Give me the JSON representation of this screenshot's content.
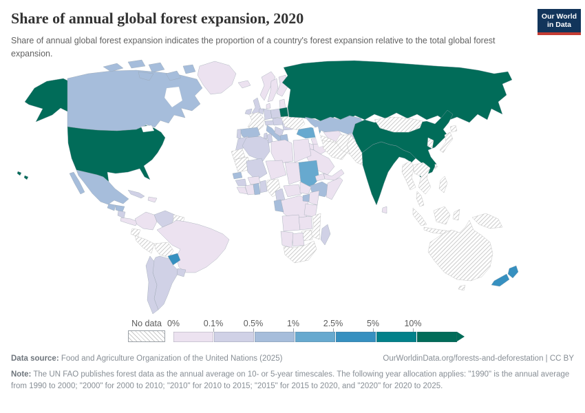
{
  "header": {
    "title": "Share of annual global forest expansion, 2020",
    "subtitle": "Share of annual global forest expansion indicates the proportion of a country's forest expansion relative to the total global forest expansion.",
    "logo": {
      "line1": "Our World",
      "line2": "in Data",
      "bg_color": "#12355b",
      "accent_color": "#c43c33"
    }
  },
  "legend": {
    "no_data_label": "No data",
    "tick_labels": [
      "0%",
      "0.1%",
      "0.5%",
      "1%",
      "2.5%",
      "5%",
      "10%"
    ],
    "bin_colors": [
      "#ece2f0",
      "#d0d1e6",
      "#a6bddb",
      "#67a9cf",
      "#3690c0",
      "#02818a",
      "#016c59"
    ]
  },
  "chart_data": {
    "type": "choropleth_map",
    "title": "Share of annual global forest expansion, 2020",
    "unit": "% of global forest expansion",
    "bin_edges": [
      "0%",
      "0.1%",
      "0.5%",
      "1%",
      "2.5%",
      "5%",
      "10%",
      ">10%"
    ],
    "no_data_label": "No data",
    "values_by_bin": {
      "10%+": [
        "United States",
        "Russia",
        "China",
        "India",
        "Belarus"
      ],
      "2.5-5%": [
        "Paraguay",
        "New Zealand"
      ],
      "1-2.5%": [
        "Turkey",
        "Sudan"
      ],
      "0.5-1%": [
        "Canada",
        "Mexico",
        "Guatemala",
        "Honduras",
        "Spain",
        "Italy",
        "Greece",
        "Kazakhstan",
        "Ethiopia",
        "Senegal",
        "Ghana",
        "Gabon",
        "Uganda"
      ],
      "0.1-0.5%": [
        "Cuba",
        "Nicaragua",
        "Venezuela",
        "Argentina",
        "Chile",
        "Uruguay",
        "United Kingdom",
        "Ireland",
        "Germany",
        "Poland",
        "Portugal",
        "Romania",
        "Balkans",
        "Morocco",
        "Algeria",
        "Tunisia",
        "Mali",
        "Guinea",
        "Togo",
        "Benin",
        "Cameroon",
        "Madagascar",
        "Kyrgyzstan"
      ],
      "0-0.1%": [
        "Greenland",
        "Brazil",
        "Colombia",
        "Norway",
        "Sweden",
        "Finland",
        "Iceland",
        "Baltic states",
        "Libya",
        "Egypt",
        "Niger",
        "Chad",
        "Eritrea",
        "Somalia",
        "Kenya",
        "Tanzania",
        "DR Congo",
        "Angola",
        "Zambia",
        "Botswana",
        "Namibia",
        "Saudi Arabia",
        "Iraq",
        "Syria",
        "Uzbekistan",
        "Sri Lanka"
      ],
      "no_data": [
        "France",
        "Ukraine",
        "Iran",
        "Turkmenistan",
        "Afghanistan",
        "Pakistan",
        "Mongolia",
        "Japan",
        "Korea",
        "Myanmar",
        "Thailand",
        "Vietnam",
        "Indonesia",
        "Philippines",
        "Papua New Guinea",
        "Australia",
        "Peru",
        "Bolivia",
        "Ecuador",
        "Guyana",
        "Mauritania",
        "Western Sahara",
        "Nigeria",
        "Mozambique",
        "Zimbabwe",
        "South Africa"
      ]
    }
  },
  "map": {
    "stroke_color": "#97a3ad",
    "no_data_pattern_color": "#cccccc",
    "fills": {
      "russia": 7,
      "canada": 3,
      "greenland": 1,
      "united-states": 7,
      "mexico": 3,
      "guatemala": 3,
      "honduras": 3,
      "nicaragua": 2,
      "costa-rica-panama": 1,
      "cuba": 2,
      "hispaniola": 1,
      "colombia": 1,
      "venezuela": 2,
      "guianas": "no-data",
      "brazil": 1,
      "ecuador": "no-data",
      "peru": "no-data",
      "bolivia": "no-data",
      "paraguay": 5,
      "uruguay": 2,
      "argentina": 2,
      "chile": 2,
      "iceland": 1,
      "ireland": 2,
      "united-kingdom": 2,
      "norway": 1,
      "sweden": 1,
      "finland": 1,
      "denmark": 1,
      "baltic-states": 1,
      "belarus": 7,
      "poland": 2,
      "germany": 2,
      "benelux": 2,
      "france": "no-data",
      "spain": 3,
      "portugal": 2,
      "italy": 3,
      "corsica-sardinia": 2,
      "switzerland-austria": 2,
      "czechia-hungary": 2,
      "romania": 2,
      "balkans": 2,
      "greece": 3,
      "ukraine": "no-data",
      "kazakhstan": 3,
      "uzbekistan": 1,
      "turkmenistan": "no-data",
      "kyrgyzstan-tajikistan": 2,
      "turkey": 4,
      "syria": 1,
      "iraq": 1,
      "iran": "no-data",
      "saudi-arabia": 1,
      "yemen-oman": 1,
      "israel-jordan": 1,
      "afghanistan": "no-data",
      "pakistan": "no-data",
      "india": 7,
      "sri-lanka": 1,
      "china": 7,
      "mongolia": "no-data",
      "north-south-korea": "no-data",
      "japan": "no-data",
      "taiwan": "no-data",
      "myanmar": "no-data",
      "indochina": "no-data",
      "malay-peninsula": "no-data",
      "indonesia": "no-data",
      "philippines": "no-data",
      "papua-new-guinea": "no-data",
      "australia": "no-data",
      "tasmania": "no-data",
      "new-zealand": 5,
      "morocco": 2,
      "western-sahara": "no-data",
      "algeria": 2,
      "tunisia": 2,
      "libya": 1,
      "egypt": 1,
      "mauritania": "no-data",
      "mali": 2,
      "niger": 1,
      "chad": 1,
      "sudan": 4,
      "eritrea": 1,
      "ethiopia": 3,
      "somalia": 1,
      "senegal": 3,
      "guinea": 2,
      "sierra-leone-liberia": 1,
      "ivory-coast": 1,
      "burkina-faso": 1,
      "ghana": 3,
      "togo-benin": 2,
      "nigeria": "no-data",
      "cameroon": 2,
      "central-african-republic": 1,
      "south-sudan": 1,
      "drc": 1,
      "gabon-congo": 3,
      "uganda": 3,
      "kenya": 1,
      "tanzania": 1,
      "angola": 1,
      "zambia": 1,
      "mozambique": "no-data",
      "zimbabwe": "no-data",
      "botswana": 1,
      "namibia": 1,
      "south-africa": "no-data",
      "madagascar": 2
    }
  },
  "footer": {
    "data_source_label": "Data source:",
    "data_source": " Food and Agriculture Organization of the United Nations (2025)",
    "link": "OurWorldinData.org/forests-and-deforestation | CC BY",
    "note_label": "Note:",
    "note": " The UN FAO publishes forest data as the annual average on 10- or 5-year timescales. The following year allocation applies: \"1990\" is the annual average from 1990 to 2000; \"2000\" for 2000 to 2010; \"2010\" for 2010 to 2015; \"2015\" for 2015 to 2020, and \"2020\" for 2020 to 2025."
  }
}
